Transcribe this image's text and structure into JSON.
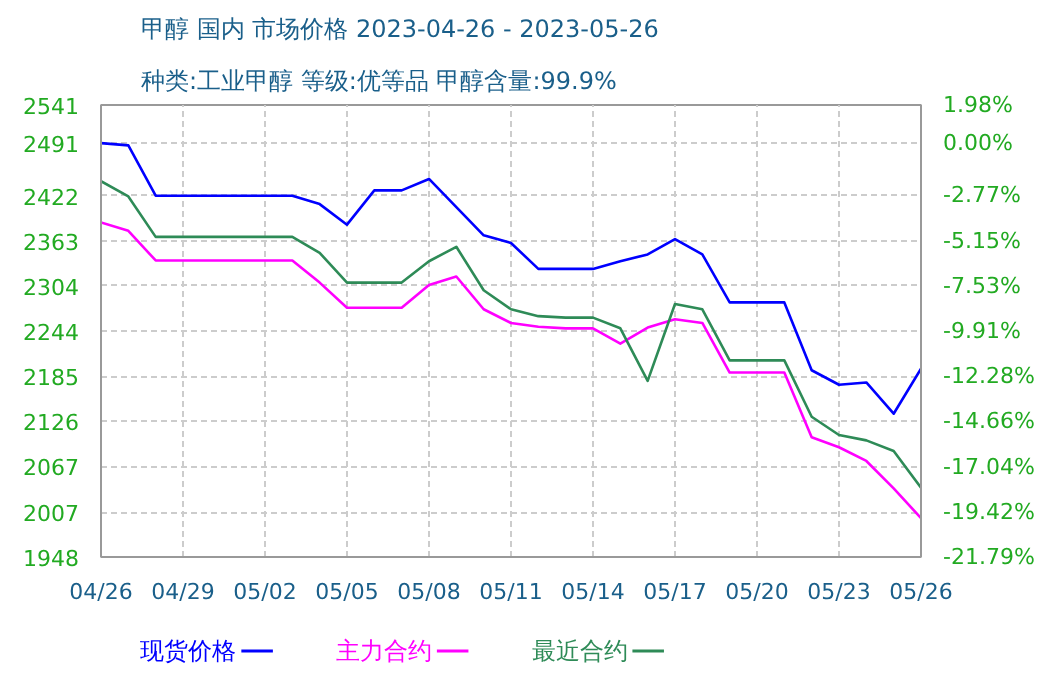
{
  "chart_data": {
    "type": "line",
    "title": "甲醇 国内 市场价格 2023-04-26 - 2023-05-26",
    "subtitle": "种类:工业甲醇 等级:优等品 甲醇含量:99.9%",
    "x": [
      "2023-04-26",
      "2023-04-27",
      "2023-04-28",
      "2023-04-29",
      "2023-04-30",
      "2023-05-01",
      "2023-05-02",
      "2023-05-03",
      "2023-05-04",
      "2023-05-05",
      "2023-05-06",
      "2023-05-07",
      "2023-05-08",
      "2023-05-09",
      "2023-05-10",
      "2023-05-11",
      "2023-05-12",
      "2023-05-13",
      "2023-05-14",
      "2023-05-15",
      "2023-05-16",
      "2023-05-17",
      "2023-05-18",
      "2023-05-19",
      "2023-05-20",
      "2023-05-21",
      "2023-05-22",
      "2023-05-23",
      "2023-05-24",
      "2023-05-25",
      "2023-05-26"
    ],
    "series": [
      {
        "name": "现货价格",
        "color": "#0000ff",
        "values": [
          2491,
          2488,
          2422,
          2422,
          2422,
          2422,
          2422,
          2422,
          2411,
          2384,
          2429,
          2429,
          2444,
          2407,
          2370,
          2360,
          2326,
          2326,
          2326,
          2336,
          2345,
          2365,
          2345,
          2282,
          2282,
          2282,
          2193,
          2174,
          2177,
          2136,
          2195
        ]
      },
      {
        "name": "主力合约",
        "color": "#ff00ff",
        "values": [
          2387,
          2376,
          2337,
          2337,
          2337,
          2337,
          2337,
          2337,
          2308,
          2275,
          2275,
          2275,
          2305,
          2316,
          2273,
          2255,
          2250,
          2248,
          2248,
          2228,
          2249,
          2260,
          2255,
          2190,
          2190,
          2190,
          2105,
          2092,
          2074,
          2038,
          1999
        ]
      },
      {
        "name": "最近合约",
        "color": "#2e8b57",
        "values": [
          2441,
          2421,
          2368,
          2368,
          2368,
          2368,
          2368,
          2368,
          2347,
          2308,
          2308,
          2308,
          2336,
          2355,
          2298,
          2273,
          2264,
          2262,
          2262,
          2248,
          2179,
          2280,
          2273,
          2206,
          2206,
          2206,
          2132,
          2108,
          2101,
          2087,
          2039
        ]
      }
    ],
    "xlim": [
      "2023-04-26",
      "2023-05-26"
    ],
    "xticks": [
      {
        "value": "2023-04-26",
        "label": "04/26"
      },
      {
        "value": "2023-04-29",
        "label": "04/29"
      },
      {
        "value": "2023-05-02",
        "label": "05/02"
      },
      {
        "value": "2023-05-05",
        "label": "05/05"
      },
      {
        "value": "2023-05-08",
        "label": "05/08"
      },
      {
        "value": "2023-05-11",
        "label": "05/11"
      },
      {
        "value": "2023-05-14",
        "label": "05/14"
      },
      {
        "value": "2023-05-17",
        "label": "05/17"
      },
      {
        "value": "2023-05-20",
        "label": "05/20"
      },
      {
        "value": "2023-05-23",
        "label": "05/23"
      },
      {
        "value": "2023-05-26",
        "label": "05/26"
      }
    ],
    "ylim": [
      1948,
      2541
    ],
    "yticks": [
      1948,
      2007,
      2067,
      2126,
      2185,
      2244,
      2304,
      2363,
      2422,
      2491,
      2541
    ],
    "y2lim": [
      -21.79,
      1.98
    ],
    "y2ticks": [
      {
        "value": -21.79,
        "label": "-21.79%"
      },
      {
        "value": -19.42,
        "label": "-19.42%"
      },
      {
        "value": -17.04,
        "label": "-17.04%"
      },
      {
        "value": -14.66,
        "label": "-14.66%"
      },
      {
        "value": -12.28,
        "label": "-12.28%"
      },
      {
        "value": -9.91,
        "label": "-9.91%"
      },
      {
        "value": -7.53,
        "label": "-7.53%"
      },
      {
        "value": -5.15,
        "label": "-5.15%"
      },
      {
        "value": -2.77,
        "label": "-2.77%"
      },
      {
        "value": 0,
        "label": "0.00%"
      },
      {
        "value": 1.98,
        "label": "1.98%"
      }
    ],
    "grid": true,
    "legend": "bottom"
  }
}
